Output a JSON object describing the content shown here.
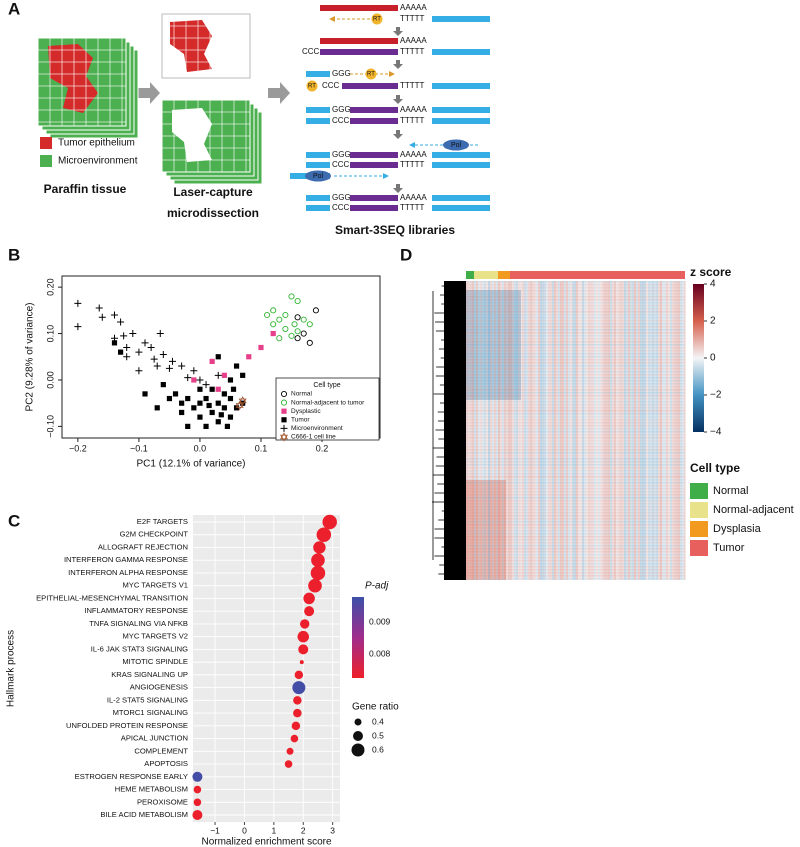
{
  "panel_labels": [
    "A",
    "B",
    "C",
    "D"
  ],
  "diagram": {
    "legend": [
      {
        "name": "Tumor epithelium",
        "color": "#d42a2a"
      },
      {
        "name": "Microenvironment",
        "color": "#4cb050"
      }
    ],
    "captions": [
      "Paraffin tissue",
      "Laser-capture",
      "microdissection",
      "Smart-3SEQ libraries"
    ],
    "seq": {
      "poly_a": "AAAAA",
      "poly_t": "TTTTT",
      "ccc": "CCC",
      "ggg": "GGG",
      "rt": "RT",
      "pol": "Pol"
    }
  },
  "chart_data": [
    {
      "type": "scatter",
      "xlabel": "PC1 (12.1% of variance)",
      "ylabel": "PC2 (9.28% of variance)",
      "xlim": [
        -0.226,
        0.295
      ],
      "ylim": [
        -0.125,
        0.224
      ],
      "xticks": [
        {
          "value": -0.2,
          "label": "−0.2"
        },
        {
          "value": -0.1,
          "label": "−0.1"
        },
        {
          "value": 0,
          "label": "0.0"
        },
        0.1,
        0.2
      ],
      "yticks": [
        {
          "value": -0.1,
          "label": "−0.10"
        },
        {
          "value": 0,
          "label": "0.00"
        },
        {
          "value": 0.1,
          "label": "0.10"
        },
        {
          "value": 0.2,
          "label": "0.20"
        }
      ],
      "legend_title": "Cell type",
      "series": [
        {
          "name": "Normal",
          "marker": "circle-open",
          "color": "#000000",
          "x": [
            0.19,
            0.17,
            0.16,
            0.18,
            0.16
          ],
          "y": [
            0.15,
            0.1,
            0.09,
            0.08,
            0.135
          ]
        },
        {
          "name": "Normal-adjacent to tumor",
          "marker": "circle-open",
          "color": "#2fb52f",
          "x": [
            0.12,
            0.13,
            0.14,
            0.15,
            0.16,
            0.14,
            0.17,
            0.13,
            0.12,
            0.16,
            0.15,
            0.11,
            0.155,
            0.18
          ],
          "y": [
            0.15,
            0.13,
            0.11,
            0.18,
            0.17,
            0.14,
            0.13,
            0.09,
            0.12,
            0.105,
            0.095,
            0.14,
            0.12,
            0.12
          ]
        },
        {
          "name": "Dysplastic",
          "marker": "square",
          "color": "#e6408a",
          "x": [
            0.02,
            0.03,
            0.04,
            0.08,
            0.1,
            0.12,
            -0.01
          ],
          "y": [
            0.04,
            -0.02,
            0.01,
            0.05,
            0.07,
            0.1,
            0.0
          ]
        },
        {
          "name": "Tumor",
          "marker": "square",
          "color": "#000000",
          "x": [
            -0.14,
            -0.13,
            -0.09,
            -0.06,
            -0.05,
            -0.04,
            -0.03,
            -0.02,
            -0.01,
            0.0,
            0.0,
            0.01,
            0.02,
            0.02,
            0.03,
            0.03,
            0.04,
            0.04,
            0.05,
            0.05,
            0.06,
            0.07,
            0.05,
            0.06,
            0.03,
            -0.02,
            0.01,
            0.045,
            -0.07,
            0.0,
            0.015,
            0.035,
            0.055,
            0.07,
            -0.03
          ],
          "y": [
            0.08,
            0.06,
            -0.03,
            -0.01,
            -0.04,
            -0.03,
            -0.05,
            -0.04,
            -0.06,
            -0.05,
            -0.08,
            -0.04,
            -0.07,
            -0.02,
            -0.05,
            -0.09,
            -0.06,
            -0.03,
            -0.08,
            -0.04,
            -0.06,
            -0.05,
            0.0,
            0.03,
            0.05,
            -0.1,
            -0.1,
            -0.1,
            -0.06,
            -0.02,
            -0.055,
            -0.075,
            -0.02,
            0.01,
            -0.07
          ]
        },
        {
          "name": "Microenvironment",
          "marker": "plus",
          "color": "#000000",
          "x": [
            -0.2,
            -0.2,
            -0.165,
            -0.16,
            -0.14,
            -0.13,
            -0.125,
            -0.12,
            -0.11,
            -0.1,
            -0.09,
            -0.08,
            -0.075,
            -0.07,
            -0.06,
            -0.05,
            -0.045,
            -0.03,
            -0.02,
            -0.01,
            0.0,
            0.01,
            0.03,
            -0.14,
            -0.1,
            -0.065,
            -0.12
          ],
          "y": [
            0.165,
            0.115,
            0.155,
            0.135,
            0.09,
            0.125,
            0.095,
            0.07,
            0.1,
            0.06,
            0.08,
            0.07,
            0.045,
            0.03,
            0.055,
            0.025,
            0.04,
            0.03,
            0.005,
            0.02,
            0.0,
            -0.01,
            0.01,
            0.14,
            0.02,
            0.1,
            0.05
          ]
        },
        {
          "name": "C666-1 cell line",
          "marker": "star",
          "color": "#a0522d",
          "x": [
            0.07,
            0.065
          ],
          "y": [
            -0.045,
            -0.055
          ]
        }
      ]
    },
    {
      "type": "dot",
      "xlabel": "Normalized enrichment score",
      "ylabel": "Hallmark process",
      "xlim": [
        -1.75,
        3.25
      ],
      "xticks": [
        {
          "value": -1,
          "label": "−1"
        },
        0,
        1,
        2,
        3
      ],
      "categories": [
        "E2F TARGETS",
        "G2M CHECKPOINT",
        "ALLOGRAFT REJECTION",
        "INTERFERON GAMMA RESPONSE",
        "INTERFERON ALPHA RESPONSE",
        "MYC TARGETS V1",
        "EPITHELIAL-MESENCHYMAL TRANSITION",
        "INFLAMMATORY RESPONSE",
        "TNFA SIGNALING VIA NFKB",
        "MYC TARGETS V2",
        "IL-6 JAK STAT3 SIGNALING",
        "MITOTIC SPINDLE",
        "KRAS SIGNALING UP",
        "ANGIOGENESIS",
        "IL-2 STAT5 SIGNALING",
        "MTORC1 SIGNALING",
        "UNFOLDED PROTEIN RESPONSE",
        "APICAL JUNCTION",
        "COMPLEMENT",
        "APOPTOSIS",
        "ESTROGEN RESPONSE EARLY",
        "HEME METABOLISM",
        "PEROXISOME",
        "BILE ACID METABOLISM"
      ],
      "values": [
        2.9,
        2.7,
        2.55,
        2.5,
        2.5,
        2.4,
        2.2,
        2.2,
        2.05,
        2.0,
        2.0,
        1.95,
        1.85,
        1.85,
        1.8,
        1.8,
        1.75,
        1.7,
        1.55,
        1.5,
        -1.6,
        -1.6,
        -1.6,
        -1.6
      ],
      "padj": [
        0.0073,
        0.0073,
        0.0073,
        0.0073,
        0.0073,
        0.0073,
        0.0073,
        0.0073,
        0.0073,
        0.0073,
        0.0073,
        0.0073,
        0.0073,
        0.0097,
        0.0073,
        0.0073,
        0.0073,
        0.0073,
        0.0073,
        0.0073,
        0.0097,
        0.0073,
        0.0073,
        0.0073
      ],
      "gene_ratio": [
        0.65,
        0.65,
        0.58,
        0.62,
        0.65,
        0.62,
        0.55,
        0.5,
        0.48,
        0.55,
        0.5,
        0.3,
        0.45,
        0.6,
        0.45,
        0.45,
        0.45,
        0.42,
        0.4,
        0.42,
        0.5,
        0.42,
        0.42,
        0.5
      ],
      "color_title": "P-adj",
      "color_lim": [
        0.00725,
        0.0098
      ],
      "color_ticks": [
        0.008,
        0.009
      ],
      "colors": [
        "#ee2028",
        "#a02c8c",
        "#3c50a8"
      ],
      "size_title": "Gene ratio",
      "size_ticks": [
        0.4,
        0.5,
        0.6
      ],
      "grid": true
    },
    {
      "type": "heatmap",
      "colorbar_title": "z score",
      "clim": [
        -4,
        4
      ],
      "cticks": [
        {
          "value": -4,
          "label": "−4"
        },
        {
          "value": -2,
          "label": "−2"
        },
        0,
        2,
        4
      ],
      "colors": [
        "#053061",
        "#4393c3",
        "#f4f4f6",
        "#d6604d",
        "#67001f"
      ],
      "legend_title": "Cell type",
      "groups": [
        {
          "name": "Normal",
          "color": "#3fae49"
        },
        {
          "name": "Normal-adjacent",
          "color": "#e8e38a"
        },
        {
          "name": "Dysplasia",
          "color": "#f29a1f"
        },
        {
          "name": "Tumor",
          "color": "#e8605e"
        }
      ]
    }
  ]
}
